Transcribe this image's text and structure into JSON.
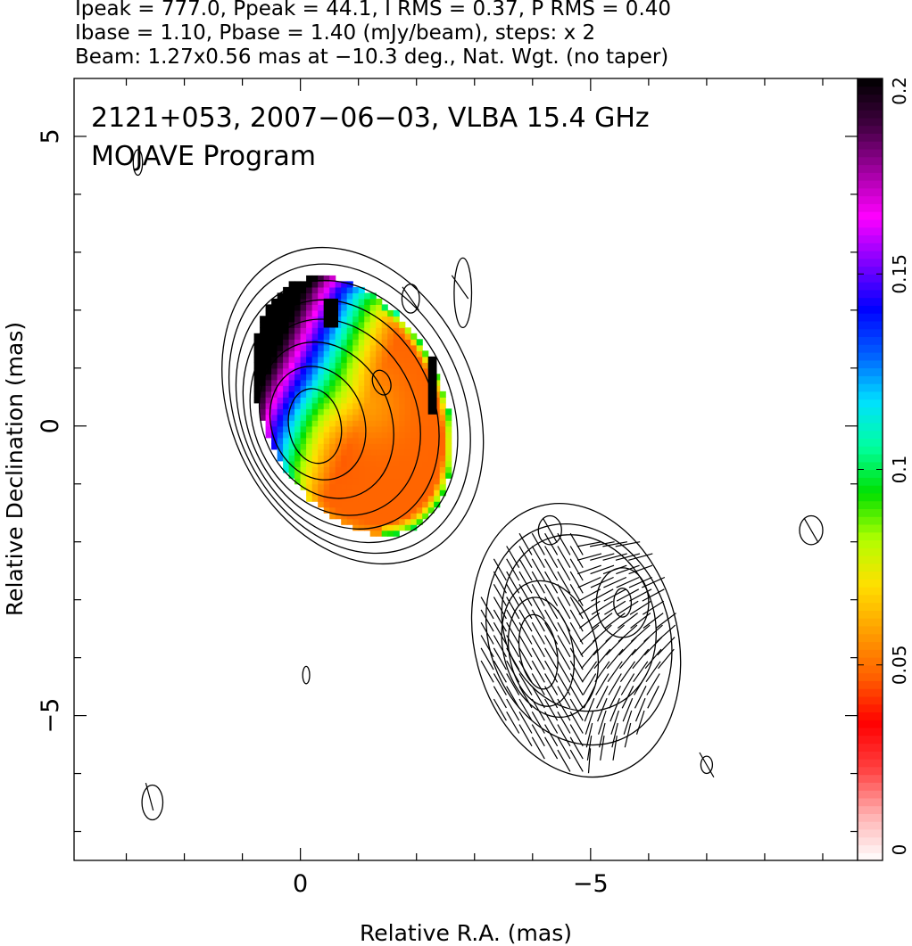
{
  "header": {
    "line1": "Ipeak = 777.0, Ppeak = 44.1, I RMS = 0.37, P RMS = 0.40",
    "line2": "Ibase = 1.10, Pbase = 1.40 (mJy/beam), steps: x 2",
    "line3": "Beam: 1.27x0.56 mas at −10.3 deg., Nat. Wgt. (no taper)"
  },
  "plot": {
    "title_line1": "2121+053, 2007−06−03, VLBA 15.4 GHz",
    "title_line2": "MOJAVE Program"
  },
  "chart_data": {
    "type": "heatmap",
    "xlabel": "Relative R.A. (mas)",
    "ylabel": "Relative Declination (mas)",
    "xlim": [
      3.9,
      -9.6
    ],
    "ylim": [
      -7.5,
      6.0
    ],
    "x_ticks": [
      0,
      -5
    ],
    "x_tick_labels": [
      "0",
      "−5"
    ],
    "y_ticks": [
      -5,
      0,
      5
    ],
    "y_tick_labels": [
      "−5",
      "0",
      "5"
    ],
    "colorbar": {
      "range": [
        0,
        0.2
      ],
      "ticks": [
        0,
        0.05,
        0.1,
        0.15,
        0.2
      ],
      "tick_labels": [
        "0",
        "0.05",
        "0.1",
        "0.15",
        "0.2"
      ],
      "colors": [
        "#ffffff",
        "#ffb0b0",
        "#ff4040",
        "#ff0000",
        "#ff6000",
        "#ffa000",
        "#ffe000",
        "#b0ff00",
        "#00e000",
        "#00ffa0",
        "#00e0ff",
        "#0060ff",
        "#0000ff",
        "#8000ff",
        "#ff00ff",
        "#a000a0",
        "#400040",
        "#000000"
      ]
    },
    "core": {
      "center": [
        -0.25,
        0.0
      ],
      "contour_ellipses": [
        {
          "cx": -0.25,
          "cy": 0.0,
          "rx": 0.45,
          "ry": 0.65,
          "angle_deg": -10
        },
        {
          "cx": -0.3,
          "cy": 0.05,
          "rx": 0.8,
          "ry": 1.0,
          "angle_deg": -20
        },
        {
          "cx": -0.45,
          "cy": 0.1,
          "rx": 1.1,
          "ry": 1.4,
          "angle_deg": -25
        },
        {
          "cx": -0.6,
          "cy": 0.15,
          "rx": 1.4,
          "ry": 1.75,
          "angle_deg": -25
        },
        {
          "cx": -0.7,
          "cy": 0.2,
          "rx": 1.6,
          "ry": 2.05,
          "angle_deg": -25
        },
        {
          "cx": -0.8,
          "cy": 0.25,
          "rx": 1.8,
          "ry": 2.35,
          "angle_deg": -25
        },
        {
          "cx": -0.85,
          "cy": 0.3,
          "rx": 1.95,
          "ry": 2.6,
          "angle_deg": -25
        },
        {
          "cx": -0.9,
          "cy": 0.35,
          "rx": 2.1,
          "ry": 2.85,
          "angle_deg": -25
        }
      ],
      "knot_ellipse": {
        "cx": -1.4,
        "cy": 0.75,
        "rx": 0.15,
        "ry": 0.22,
        "angle_deg": -20
      }
    },
    "jet_knot": {
      "contour_ellipses": [
        {
          "cx": -4.1,
          "cy": -3.9,
          "rx": 0.32,
          "ry": 0.65,
          "angle_deg": -10
        },
        {
          "cx": -4.15,
          "cy": -3.9,
          "rx": 0.55,
          "ry": 0.95,
          "angle_deg": -10
        },
        {
          "cx": -4.3,
          "cy": -3.85,
          "rx": 0.8,
          "ry": 1.2,
          "angle_deg": -15
        },
        {
          "cx": -5.55,
          "cy": -3.05,
          "rx": 0.15,
          "ry": 0.25,
          "angle_deg": 0
        },
        {
          "cx": -5.55,
          "cy": -3.05,
          "rx": 0.45,
          "ry": 0.6,
          "angle_deg": 0
        },
        {
          "cx": -4.8,
          "cy": -3.4,
          "rx": 1.3,
          "ry": 1.55,
          "angle_deg": -20
        },
        {
          "cx": -4.8,
          "cy": -3.6,
          "rx": 1.55,
          "ry": 1.95,
          "angle_deg": -20
        },
        {
          "cx": -4.75,
          "cy": -3.7,
          "rx": 1.75,
          "ry": 2.4,
          "angle_deg": -15
        }
      ]
    },
    "small_contours": [
      {
        "cx": 2.8,
        "cy": 4.55,
        "rx": 0.08,
        "ry": 0.22
      },
      {
        "cx": -2.8,
        "cy": 2.3,
        "rx": 0.15,
        "ry": 0.6
      },
      {
        "cx": -1.9,
        "cy": 2.2,
        "rx": 0.15,
        "ry": 0.25
      },
      {
        "cx": -4.3,
        "cy": -1.8,
        "rx": 0.2,
        "ry": 0.25
      },
      {
        "cx": -8.8,
        "cy": -1.8,
        "rx": 0.2,
        "ry": 0.25
      },
      {
        "cx": -7.0,
        "cy": -5.85,
        "rx": 0.1,
        "ry": 0.15
      },
      {
        "cx": 2.55,
        "cy": -6.5,
        "rx": 0.18,
        "ry": 0.3
      },
      {
        "cx": -0.1,
        "cy": -4.3,
        "rx": 0.06,
        "ry": 0.15
      }
    ]
  }
}
